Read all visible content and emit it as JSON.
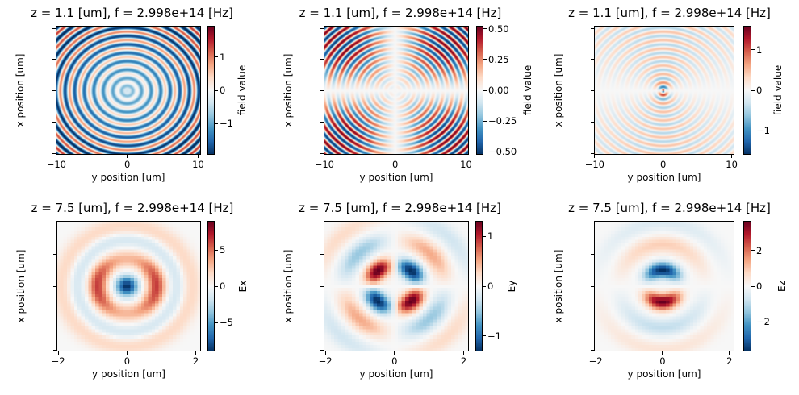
{
  "colormap": "RdBu_r",
  "chart_data": [
    {
      "type": "heatmap",
      "title": "z = 1.1 [um], f = 2.998e+14 [Hz]",
      "xlabel": "y position [um]",
      "ylabel": "x position [um]",
      "colorbar_label": "field value",
      "xlim": [
        -10.1,
        10.4
      ],
      "ylim": [
        -10.2,
        10.4
      ],
      "xticks": [
        -10,
        0,
        10
      ],
      "yticks": [
        -10,
        -5,
        0,
        5,
        10
      ],
      "clim": [
        -1.93,
        1.93
      ],
      "cticks": [
        -1,
        0,
        1
      ],
      "cticklabels": [
        "−1",
        "0",
        "1"
      ],
      "field": "ex_wide"
    },
    {
      "type": "heatmap",
      "title": "z = 1.1 [um], f = 2.998e+14 [Hz]",
      "xlabel": "y position [um]",
      "ylabel": "x position [um]",
      "colorbar_label": "field value",
      "xlim": [
        -10.1,
        10.4
      ],
      "ylim": [
        -10.2,
        10.4
      ],
      "xticks": [
        -10,
        0,
        10
      ],
      "yticks": [
        -10,
        -5,
        0,
        5,
        10
      ],
      "clim": [
        -0.526,
        0.526
      ],
      "cticks": [
        -0.5,
        -0.25,
        0,
        0.25,
        0.5
      ],
      "cticklabels": [
        "−0.50",
        "−0.25",
        "0.00",
        "0.25",
        "0.50"
      ],
      "field": "ey_wide"
    },
    {
      "type": "heatmap",
      "title": "z = 1.1 [um], f = 2.998e+14 [Hz]",
      "xlabel": "y position [um]",
      "ylabel": "x position [um]",
      "colorbar_label": "field value",
      "xlim": [
        -10.1,
        10.4
      ],
      "ylim": [
        -10.2,
        10.4
      ],
      "xticks": [
        -10,
        0,
        10
      ],
      "yticks": [
        -10,
        -5,
        0,
        5,
        10
      ],
      "clim": [
        -1.59,
        1.59
      ],
      "cticks": [
        -1,
        0,
        1
      ],
      "cticklabels": [
        "−1",
        "0",
        "1"
      ],
      "field": "ez_wide"
    },
    {
      "type": "heatmap",
      "title": "z = 7.5 [um], f = 2.998e+14 [Hz]",
      "xlabel": "y position [um]",
      "ylabel": "x position [um]",
      "colorbar_label": "Ex",
      "xlim": [
        -2.05,
        2.15
      ],
      "ylim": [
        -2.05,
        2.05
      ],
      "xticks": [
        -2,
        0,
        2
      ],
      "yticks": [
        -2,
        -1,
        0,
        1,
        2
      ],
      "clim": [
        -9.0,
        9.0
      ],
      "cticks": [
        -5,
        0,
        5
      ],
      "cticklabels": [
        "−5",
        "0",
        "5"
      ],
      "field": "ex_near"
    },
    {
      "type": "heatmap",
      "title": "z = 7.5 [um], f = 2.998e+14 [Hz]",
      "xlabel": "y position [um]",
      "ylabel": "x position [um]",
      "colorbar_label": "Ey",
      "xlim": [
        -2.05,
        2.15
      ],
      "ylim": [
        -2.05,
        2.05
      ],
      "xticks": [
        -2,
        0,
        2
      ],
      "yticks": [
        -2,
        -1,
        0,
        1,
        2
      ],
      "clim": [
        -1.31,
        1.31
      ],
      "cticks": [
        -1,
        0,
        1
      ],
      "cticklabels": [
        "−1",
        "0",
        "1"
      ],
      "field": "ey_near"
    },
    {
      "type": "heatmap",
      "title": "z = 7.5 [um], f = 2.998e+14 [Hz]",
      "xlabel": "y position [um]",
      "ylabel": "x position [um]",
      "colorbar_label": "Ez",
      "xlim": [
        -2.05,
        2.15
      ],
      "ylim": [
        -2.05,
        2.05
      ],
      "xticks": [
        -2,
        0,
        2
      ],
      "yticks": [
        -2,
        -1,
        0,
        1,
        2
      ],
      "clim": [
        -3.68,
        3.68
      ],
      "cticks": [
        -2,
        0,
        2
      ],
      "cticklabels": [
        "−2",
        "0",
        "2"
      ],
      "field": "ez_near"
    }
  ]
}
